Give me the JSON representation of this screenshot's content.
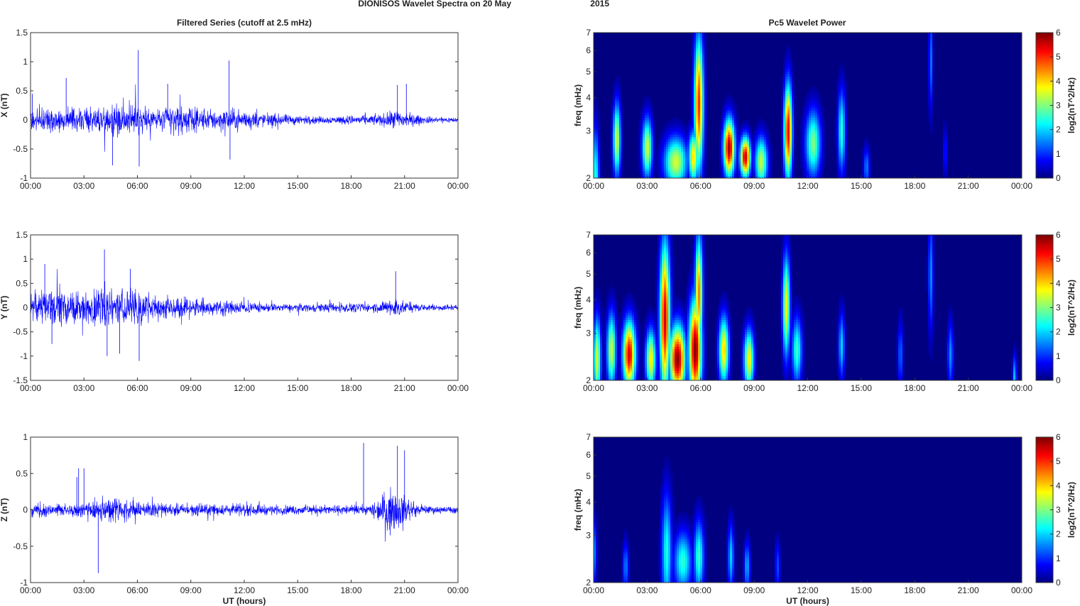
{
  "figure": {
    "title_left": "DIONISOS Wavelet Spectra on 20 May",
    "title_right": "2015",
    "left_column_title": "Filtered Series (cutoff at 2.5 mHz)",
    "right_column_title": "Pc5 Wavelet Power",
    "colors": {
      "trace": "#0000ff",
      "axis": "#333333"
    }
  },
  "chart_data": [
    {
      "type": "line",
      "component": "X",
      "title": "Filtered Series (cutoff at 2.5 mHz)",
      "xlabel": "",
      "ylabel": "X (nT)",
      "ylim": [
        -1,
        1.5
      ],
      "yticks": [
        "-1",
        "-0.5",
        "0",
        "0.5",
        "1",
        "1.5"
      ],
      "xticks": [
        "00:00",
        "03:00",
        "06:00",
        "09:00",
        "12:00",
        "15:00",
        "18:00",
        "21:00",
        "00:00"
      ],
      "xlim_hours": [
        0,
        24
      ],
      "envelope": {
        "hours": [
          0,
          1,
          2,
          3,
          4,
          4.5,
          5,
          5.5,
          6,
          6.5,
          7,
          7.5,
          8,
          9,
          10,
          11,
          12,
          13,
          14,
          15,
          16,
          17,
          18,
          19,
          20,
          20.5,
          21,
          22,
          23,
          24
        ],
        "amp": [
          0.25,
          0.25,
          0.28,
          0.22,
          0.3,
          0.35,
          0.35,
          0.3,
          0.35,
          0.3,
          0.25,
          0.3,
          0.35,
          0.25,
          0.22,
          0.25,
          0.2,
          0.15,
          0.12,
          0.1,
          0.08,
          0.08,
          0.1,
          0.1,
          0.15,
          0.22,
          0.18,
          0.08,
          0.06,
          0.06
        ]
      },
      "spikes": [
        {
          "hour": 6.05,
          "value": 1.2
        },
        {
          "hour": 11.15,
          "value": 1.02
        },
        {
          "hour": 6.1,
          "value": -0.8
        },
        {
          "hour": 4.6,
          "value": -0.78
        },
        {
          "hour": 11.2,
          "value": -0.68
        },
        {
          "hour": 7.7,
          "value": 0.62
        },
        {
          "hour": 20.6,
          "value": 0.6
        },
        {
          "hour": 21.1,
          "value": 0.62
        },
        {
          "hour": 0.1,
          "value": 0.45
        },
        {
          "hour": 2.0,
          "value": 0.72
        }
      ]
    },
    {
      "type": "line",
      "component": "Y",
      "xlabel": "",
      "ylabel": "Y (nT)",
      "ylim": [
        -1.5,
        1.5
      ],
      "yticks": [
        "-1.5",
        "-1",
        "-0.5",
        "0",
        "0.5",
        "1",
        "1.5"
      ],
      "xticks": [
        "00:00",
        "03:00",
        "06:00",
        "09:00",
        "12:00",
        "15:00",
        "18:00",
        "21:00",
        "00:00"
      ],
      "xlim_hours": [
        0,
        24
      ],
      "envelope": {
        "hours": [
          0,
          1,
          2,
          3,
          3.5,
          4,
          4.5,
          5,
          5.5,
          6,
          6.5,
          7,
          8,
          9,
          10,
          11,
          12,
          13,
          14,
          15,
          16,
          17,
          18,
          19,
          20,
          20.5,
          21,
          22,
          23,
          24
        ],
        "amp": [
          0.4,
          0.45,
          0.45,
          0.35,
          0.5,
          0.65,
          0.55,
          0.4,
          0.5,
          0.55,
          0.35,
          0.3,
          0.25,
          0.25,
          0.2,
          0.2,
          0.15,
          0.12,
          0.1,
          0.1,
          0.1,
          0.12,
          0.12,
          0.1,
          0.18,
          0.28,
          0.15,
          0.08,
          0.08,
          0.08
        ]
      },
      "spikes": [
        {
          "hour": 4.15,
          "value": 1.2
        },
        {
          "hour": 6.1,
          "value": -1.1
        },
        {
          "hour": 4.3,
          "value": -1.0
        },
        {
          "hour": 1.2,
          "value": -0.75
        },
        {
          "hour": 0.8,
          "value": 0.9
        },
        {
          "hour": 5.0,
          "value": -0.95
        },
        {
          "hour": 5.6,
          "value": 0.8
        },
        {
          "hour": 20.5,
          "value": 0.75
        }
      ]
    },
    {
      "type": "line",
      "component": "Z",
      "xlabel": "UT (hours)",
      "ylabel": "Z (nT)",
      "ylim": [
        -1,
        1
      ],
      "yticks": [
        "-1",
        "-0.5",
        "0",
        "0.5",
        "1"
      ],
      "xticks": [
        "00:00",
        "03:00",
        "06:00",
        "09:00",
        "12:00",
        "15:00",
        "18:00",
        "21:00",
        "00:00"
      ],
      "xlim_hours": [
        0,
        24
      ],
      "envelope": {
        "hours": [
          0,
          1,
          2,
          3,
          4,
          5,
          6,
          7,
          8,
          9,
          10,
          11,
          12,
          13,
          14,
          15,
          16,
          17,
          18,
          19,
          19.5,
          20,
          20.5,
          21,
          21.5,
          22,
          23,
          24
        ],
        "amp": [
          0.12,
          0.12,
          0.12,
          0.12,
          0.2,
          0.18,
          0.15,
          0.12,
          0.1,
          0.1,
          0.1,
          0.1,
          0.1,
          0.09,
          0.08,
          0.08,
          0.08,
          0.08,
          0.08,
          0.08,
          0.2,
          0.32,
          0.35,
          0.25,
          0.12,
          0.07,
          0.06,
          0.06
        ]
      },
      "spikes": [
        {
          "hour": 3.8,
          "value": -0.87
        },
        {
          "hour": 18.7,
          "value": 0.92
        },
        {
          "hour": 20.6,
          "value": 0.88
        },
        {
          "hour": 21.0,
          "value": 0.82
        },
        {
          "hour": 2.7,
          "value": 0.57
        },
        {
          "hour": 3.0,
          "value": 0.57
        },
        {
          "hour": 2.6,
          "value": 0.45
        },
        {
          "hour": 20.2,
          "value": -0.35
        }
      ]
    },
    {
      "type": "heatmap",
      "component": "X",
      "title": "Pc5 Wavelet Power",
      "xlabel": "",
      "ylabel": "freq (mHz)",
      "ylim": [
        2,
        7
      ],
      "yscale": "log",
      "yticks": [
        "2",
        "3",
        "4",
        "5",
        "6",
        "7"
      ],
      "xticks": [
        "00:00",
        "03:00",
        "06:00",
        "09:00",
        "12:00",
        "15:00",
        "18:00",
        "21:00",
        "00:00"
      ],
      "colorbar": {
        "label": "log2(nT^2/Hz)",
        "ticks": [
          "0",
          "1",
          "2",
          "3",
          "4",
          "5",
          "6"
        ],
        "range": [
          0,
          6
        ]
      },
      "blobs": [
        {
          "hour": 0.1,
          "freq": 2.0,
          "power": 2.5,
          "sig_h": 0.15,
          "sig_f": 0.3
        },
        {
          "hour": 1.3,
          "freq": 2.8,
          "power": 3.5,
          "sig_h": 0.15,
          "sig_f": 0.22
        },
        {
          "hour": 3.0,
          "freq": 2.6,
          "power": 3.5,
          "sig_h": 0.2,
          "sig_f": 0.18
        },
        {
          "hour": 4.6,
          "freq": 2.3,
          "power": 3.5,
          "sig_h": 0.45,
          "sig_f": 0.15
        },
        {
          "hour": 5.9,
          "freq": 3.8,
          "power": 5.0,
          "sig_h": 0.18,
          "sig_f": 0.4
        },
        {
          "hour": 5.6,
          "freq": 2.4,
          "power": 4.0,
          "sig_h": 0.2,
          "sig_f": 0.15
        },
        {
          "hour": 7.6,
          "freq": 2.6,
          "power": 5.8,
          "sig_h": 0.22,
          "sig_f": 0.17
        },
        {
          "hour": 8.5,
          "freq": 2.4,
          "power": 5.6,
          "sig_h": 0.2,
          "sig_f": 0.12
        },
        {
          "hour": 10.9,
          "freq": 3.0,
          "power": 5.4,
          "sig_h": 0.16,
          "sig_f": 0.28
        },
        {
          "hour": 9.4,
          "freq": 2.3,
          "power": 3.4,
          "sig_h": 0.25,
          "sig_f": 0.15
        },
        {
          "hour": 12.3,
          "freq": 2.7,
          "power": 3.0,
          "sig_h": 0.3,
          "sig_f": 0.2
        },
        {
          "hour": 13.9,
          "freq": 3.0,
          "power": 2.5,
          "sig_h": 0.15,
          "sig_f": 0.25
        },
        {
          "hour": 15.3,
          "freq": 2.2,
          "power": 1.5,
          "sig_h": 0.12,
          "sig_f": 0.12
        },
        {
          "hour": 18.9,
          "freq": 5.5,
          "power": 1.5,
          "sig_h": 0.08,
          "sig_f": 0.3
        },
        {
          "hour": 19.7,
          "freq": 2.5,
          "power": 1.0,
          "sig_h": 0.08,
          "sig_f": 0.15
        }
      ]
    },
    {
      "type": "heatmap",
      "component": "Y",
      "xlabel": "",
      "ylabel": "freq (mHz)",
      "ylim": [
        2,
        7
      ],
      "yscale": "log",
      "yticks": [
        "2",
        "3",
        "4",
        "5",
        "6",
        "7"
      ],
      "xticks": [
        "00:00",
        "03:00",
        "06:00",
        "09:00",
        "12:00",
        "15:00",
        "18:00",
        "21:00",
        "00:00"
      ],
      "colorbar": {
        "label": "log2(nT^2/Hz)",
        "ticks": [
          "0",
          "1",
          "2",
          "3",
          "4",
          "5",
          "6"
        ],
        "range": [
          0,
          6
        ]
      },
      "blobs": [
        {
          "hour": 0.2,
          "freq": 2.4,
          "power": 3.5,
          "sig_h": 0.15,
          "sig_f": 0.25
        },
        {
          "hour": 1.0,
          "freq": 2.6,
          "power": 3.5,
          "sig_h": 0.18,
          "sig_f": 0.22
        },
        {
          "hour": 2.0,
          "freq": 2.5,
          "power": 5.5,
          "sig_h": 0.25,
          "sig_f": 0.2
        },
        {
          "hour": 3.2,
          "freq": 2.4,
          "power": 3.8,
          "sig_h": 0.2,
          "sig_f": 0.18
        },
        {
          "hour": 4.0,
          "freq": 3.4,
          "power": 5.5,
          "sig_h": 0.2,
          "sig_f": 0.45
        },
        {
          "hour": 4.7,
          "freq": 2.4,
          "power": 6.0,
          "sig_h": 0.3,
          "sig_f": 0.2
        },
        {
          "hour": 5.7,
          "freq": 2.6,
          "power": 6.0,
          "sig_h": 0.25,
          "sig_f": 0.3
        },
        {
          "hour": 5.9,
          "freq": 4.2,
          "power": 4.5,
          "sig_h": 0.15,
          "sig_f": 0.35
        },
        {
          "hour": 7.3,
          "freq": 2.6,
          "power": 4.0,
          "sig_h": 0.2,
          "sig_f": 0.2
        },
        {
          "hour": 8.7,
          "freq": 2.4,
          "power": 3.8,
          "sig_h": 0.2,
          "sig_f": 0.18
        },
        {
          "hour": 10.8,
          "freq": 3.8,
          "power": 3.8,
          "sig_h": 0.15,
          "sig_f": 0.3
        },
        {
          "hour": 11.4,
          "freq": 2.6,
          "power": 2.6,
          "sig_h": 0.2,
          "sig_f": 0.2
        },
        {
          "hour": 13.9,
          "freq": 2.7,
          "power": 2.0,
          "sig_h": 0.12,
          "sig_f": 0.2
        },
        {
          "hour": 17.2,
          "freq": 2.5,
          "power": 1.4,
          "sig_h": 0.1,
          "sig_f": 0.2
        },
        {
          "hour": 20.0,
          "freq": 2.5,
          "power": 1.6,
          "sig_h": 0.12,
          "sig_f": 0.2
        },
        {
          "hour": 18.9,
          "freq": 5.0,
          "power": 1.6,
          "sig_h": 0.1,
          "sig_f": 0.35
        },
        {
          "hour": 23.6,
          "freq": 2.0,
          "power": 2.0,
          "sig_h": 0.08,
          "sig_f": 0.15
        }
      ]
    },
    {
      "type": "heatmap",
      "component": "Z",
      "xlabel": "UT (hours)",
      "ylabel": "freq (mHz)",
      "ylim": [
        2,
        7
      ],
      "yscale": "log",
      "yticks": [
        "2",
        "3",
        "4",
        "5",
        "6",
        "7"
      ],
      "xticks": [
        "00:00",
        "03:00",
        "06:00",
        "09:00",
        "12:00",
        "15:00",
        "18:00",
        "21:00",
        "00:00"
      ],
      "colorbar": {
        "label": "log2(nT^2/Hz)",
        "ticks": [
          "0",
          "1",
          "2",
          "3",
          "4",
          "5",
          "6"
        ],
        "range": [
          0,
          6
        ]
      },
      "blobs": [
        {
          "hour": 0.05,
          "freq": 2.6,
          "power": 1.5,
          "sig_h": 0.1,
          "sig_f": 0.2
        },
        {
          "hour": 1.8,
          "freq": 2.3,
          "power": 1.5,
          "sig_h": 0.12,
          "sig_f": 0.15
        },
        {
          "hour": 4.1,
          "freq": 2.6,
          "power": 2.4,
          "sig_h": 0.2,
          "sig_f": 0.35
        },
        {
          "hour": 5.0,
          "freq": 2.4,
          "power": 2.5,
          "sig_h": 0.35,
          "sig_f": 0.18
        },
        {
          "hour": 5.9,
          "freq": 2.5,
          "power": 2.6,
          "sig_h": 0.2,
          "sig_f": 0.22
        },
        {
          "hour": 7.7,
          "freq": 2.5,
          "power": 2.0,
          "sig_h": 0.12,
          "sig_f": 0.2
        },
        {
          "hour": 8.6,
          "freq": 2.3,
          "power": 1.8,
          "sig_h": 0.12,
          "sig_f": 0.15
        },
        {
          "hour": 10.3,
          "freq": 2.3,
          "power": 1.2,
          "sig_h": 0.1,
          "sig_f": 0.15
        }
      ]
    }
  ]
}
